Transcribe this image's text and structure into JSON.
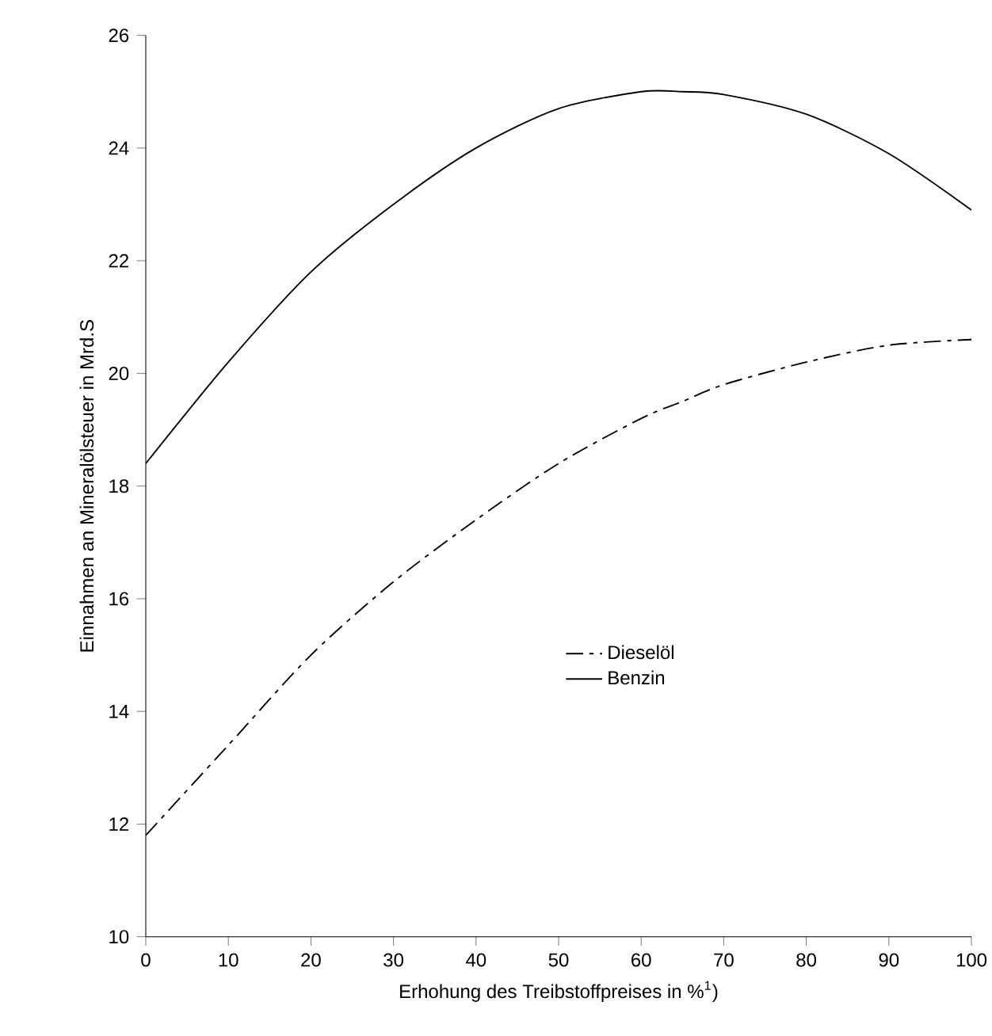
{
  "chart_data": {
    "type": "line",
    "xlabel": "Erhohung des Treibstoffpreises in %$^{1}$)",
    "ylabel": "Einnahmen an Mineralölsteuer in Mrd.S",
    "x": [
      0,
      10,
      20,
      30,
      40,
      50,
      60,
      65,
      70,
      80,
      90,
      100
    ],
    "series": [
      {
        "name": "Dieselöl",
        "color": "#000000",
        "line_style": "dashed",
        "values": [
          11.8,
          13.4,
          15.0,
          16.3,
          17.4,
          18.4,
          19.2,
          19.5,
          19.8,
          20.2,
          20.5,
          20.6
        ]
      },
      {
        "name": "Benzin",
        "color": "#000000",
        "line_style": "solid",
        "values": [
          18.4,
          20.2,
          21.8,
          23.0,
          24.0,
          24.7,
          25.0,
          25.0,
          24.95,
          24.6,
          23.9,
          22.9
        ]
      }
    ],
    "xlim": [
      0,
      100
    ],
    "xticks": [
      0,
      10,
      20,
      30,
      40,
      50,
      60,
      70,
      80,
      90,
      100
    ],
    "ylim": [
      10,
      26
    ],
    "yticks": [
      10,
      12,
      14,
      16,
      18,
      20,
      22,
      24,
      26
    ],
    "legend": "right",
    "grid": false,
    "marker": "none"
  }
}
